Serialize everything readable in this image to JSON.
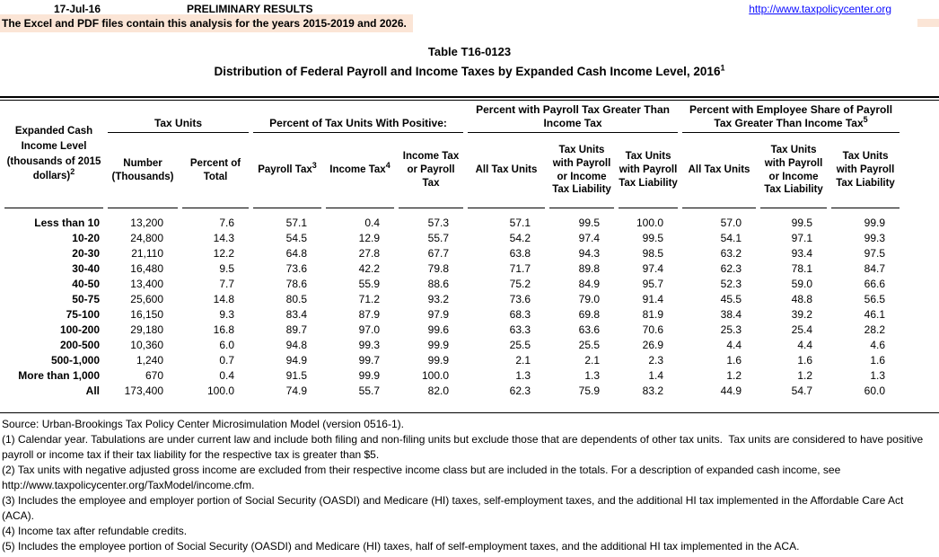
{
  "header": {
    "date": "17-Jul-16",
    "status": "PRELIMINARY RESULTS",
    "link": "http://www.taxpolicycenter.org",
    "banner": "The Excel and PDF files contain this analysis for the years 2015-2019 and 2026."
  },
  "title": {
    "table_number": "Table T16-0123",
    "main": "Distribution of Federal Payroll and Income Taxes by Expanded Cash Income Level, 2016",
    "main_sup": "1"
  },
  "colors": {
    "highlight_bg": "#FBE5D6",
    "link_blue": "#0D0DFF"
  },
  "table": {
    "stub_header": {
      "text": "Expanded Cash Income Level (thousands of 2015 dollars)",
      "sup": "2"
    },
    "groups": [
      {
        "label": "Tax Units",
        "sup": "",
        "span": 2
      },
      {
        "label": "Percent of Tax Units With Positive:",
        "sup": "",
        "span": 3
      },
      {
        "label": "Percent with Payroll Tax Greater Than Income Tax",
        "sup": "",
        "span": 3
      },
      {
        "label": "Percent with Employee Share of Payroll Tax Greater Than Income Tax",
        "sup": "5",
        "span": 3
      }
    ],
    "columns": [
      {
        "label": "Number (Thousands)",
        "sup": ""
      },
      {
        "label": "Percent of Total",
        "sup": ""
      },
      {
        "label": "Payroll Tax",
        "sup": "3"
      },
      {
        "label": "Income Tax",
        "sup": "4"
      },
      {
        "label": "Income Tax or Payroll Tax",
        "sup": ""
      },
      {
        "label": "All Tax Units",
        "sup": ""
      },
      {
        "label": "Tax Units with Payroll or Income Tax Liability",
        "sup": ""
      },
      {
        "label": "Tax Units with Payroll Tax Liability",
        "sup": ""
      },
      {
        "label": "All Tax Units",
        "sup": ""
      },
      {
        "label": "Tax Units with Payroll or Income Tax Liability",
        "sup": ""
      },
      {
        "label": "Tax Units with Payroll Tax Liability",
        "sup": ""
      }
    ],
    "rows": [
      {
        "label": "Less than 10",
        "values": [
          "13,200",
          "7.6",
          "57.1",
          "0.4",
          "57.3",
          "57.1",
          "99.5",
          "100.0",
          "57.0",
          "99.5",
          "99.9"
        ]
      },
      {
        "label": "10-20",
        "values": [
          "24,800",
          "14.3",
          "54.5",
          "12.9",
          "55.7",
          "54.2",
          "97.4",
          "99.5",
          "54.1",
          "97.1",
          "99.3"
        ]
      },
      {
        "label": "20-30",
        "values": [
          "21,110",
          "12.2",
          "64.8",
          "27.8",
          "67.7",
          "63.8",
          "94.3",
          "98.5",
          "63.2",
          "93.4",
          "97.5"
        ]
      },
      {
        "label": "30-40",
        "values": [
          "16,480",
          "9.5",
          "73.6",
          "42.2",
          "79.8",
          "71.7",
          "89.8",
          "97.4",
          "62.3",
          "78.1",
          "84.7"
        ]
      },
      {
        "label": "40-50",
        "values": [
          "13,400",
          "7.7",
          "78.6",
          "55.9",
          "88.6",
          "75.2",
          "84.9",
          "95.7",
          "52.3",
          "59.0",
          "66.6"
        ]
      },
      {
        "label": "50-75",
        "values": [
          "25,600",
          "14.8",
          "80.5",
          "71.2",
          "93.2",
          "73.6",
          "79.0",
          "91.4",
          "45.5",
          "48.8",
          "56.5"
        ]
      },
      {
        "label": "75-100",
        "values": [
          "16,150",
          "9.3",
          "83.4",
          "87.9",
          "97.9",
          "68.3",
          "69.8",
          "81.9",
          "38.4",
          "39.2",
          "46.1"
        ]
      },
      {
        "label": "100-200",
        "values": [
          "29,180",
          "16.8",
          "89.7",
          "97.0",
          "99.6",
          "63.3",
          "63.6",
          "70.6",
          "25.3",
          "25.4",
          "28.2"
        ]
      },
      {
        "label": "200-500",
        "values": [
          "10,360",
          "6.0",
          "94.8",
          "99.3",
          "99.9",
          "25.5",
          "25.5",
          "26.9",
          "4.4",
          "4.4",
          "4.6"
        ]
      },
      {
        "label": "500-1,000",
        "values": [
          "1,240",
          "0.7",
          "94.9",
          "99.7",
          "99.9",
          "2.1",
          "2.1",
          "2.3",
          "1.6",
          "1.6",
          "1.6"
        ]
      },
      {
        "label": "More than 1,000",
        "values": [
          "670",
          "0.4",
          "91.5",
          "99.9",
          "100.0",
          "1.3",
          "1.3",
          "1.4",
          "1.2",
          "1.2",
          "1.3"
        ]
      },
      {
        "label": "All",
        "values": [
          "173,400",
          "100.0",
          "74.9",
          "55.7",
          "82.0",
          "62.3",
          "75.9",
          "83.2",
          "44.9",
          "54.7",
          "60.0"
        ]
      }
    ]
  },
  "footnotes": [
    "Source: Urban-Brookings Tax Policy Center Microsimulation Model (version 0516-1).",
    "(1) Calendar year. Tabulations are under current law and include both filing and non-filing units but exclude those that are dependents of other tax units.  Tax units are considered to have positive payroll or income tax if their tax liability for the respective tax is greater than $5.",
    "(2) Tax units with negative adjusted gross income are excluded from their respective income class but are included in the totals. For a description of expanded cash income, see http://www.taxpolicycenter.org/TaxModel/income.cfm.",
    "(3) Includes the employee and employer portion of Social Security (OASDI) and Medicare (HI) taxes, self-employment taxes, and the additional HI tax implemented in the Affordable Care Act (ACA).",
    "(4) Income tax after refundable credits.",
    "(5) Includes the employee portion of Social Security (OASDI) and Medicare (HI) taxes, half of self-employment taxes, and the additional HI tax implemented in the ACA."
  ]
}
